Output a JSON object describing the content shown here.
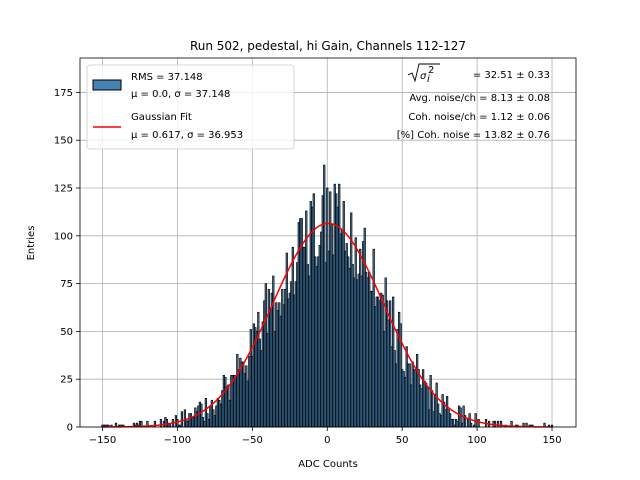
{
  "chart_data": {
    "type": "bar",
    "title": "Run 502, pedestal, hi Gain, Channels 112-127",
    "xlabel": "ADC Counts",
    "ylabel": "Entries",
    "xlim": [
      -165,
      166
    ],
    "ylim": [
      0,
      193
    ],
    "grid": true,
    "xticks": [
      -150,
      -100,
      -50,
      0,
      50,
      100,
      150
    ],
    "yticks": [
      0,
      25,
      50,
      75,
      100,
      125,
      150,
      175
    ],
    "bin_width": 1,
    "bar_color": "#4682b4",
    "edge_color": "#000000",
    "histogram": {
      "name": "RMS = 37.148",
      "mean": 0.0,
      "sigma": 37.148,
      "legend_label_1": "RMS = 37.148",
      "legend_label_2": "μ = 0.0, σ = 37.148"
    },
    "fit": {
      "name": "Gaussian Fit",
      "color": "#ff0000",
      "mu": 0.617,
      "sigma": 36.953,
      "amplitude": 106.5,
      "x_range": [
        -150,
        150
      ],
      "legend_label_1": "Gaussian Fit",
      "legend_label_2": "μ = 0.617, σ = 36.953"
    },
    "legend_position": "top-left",
    "annotations": {
      "sqrt_label": "σ",
      "sqrt_sub": "i",
      "sqrt_sup": "2",
      "sqrt_value": "= 32.51 ± 0.33",
      "line2": "Avg. noise/ch = 8.13 ± 0.08",
      "line3": "Coh. noise/ch = 1.12 ± 0.06",
      "line4": "[%] Coh. noise = 13.82 ± 0.76"
    }
  }
}
